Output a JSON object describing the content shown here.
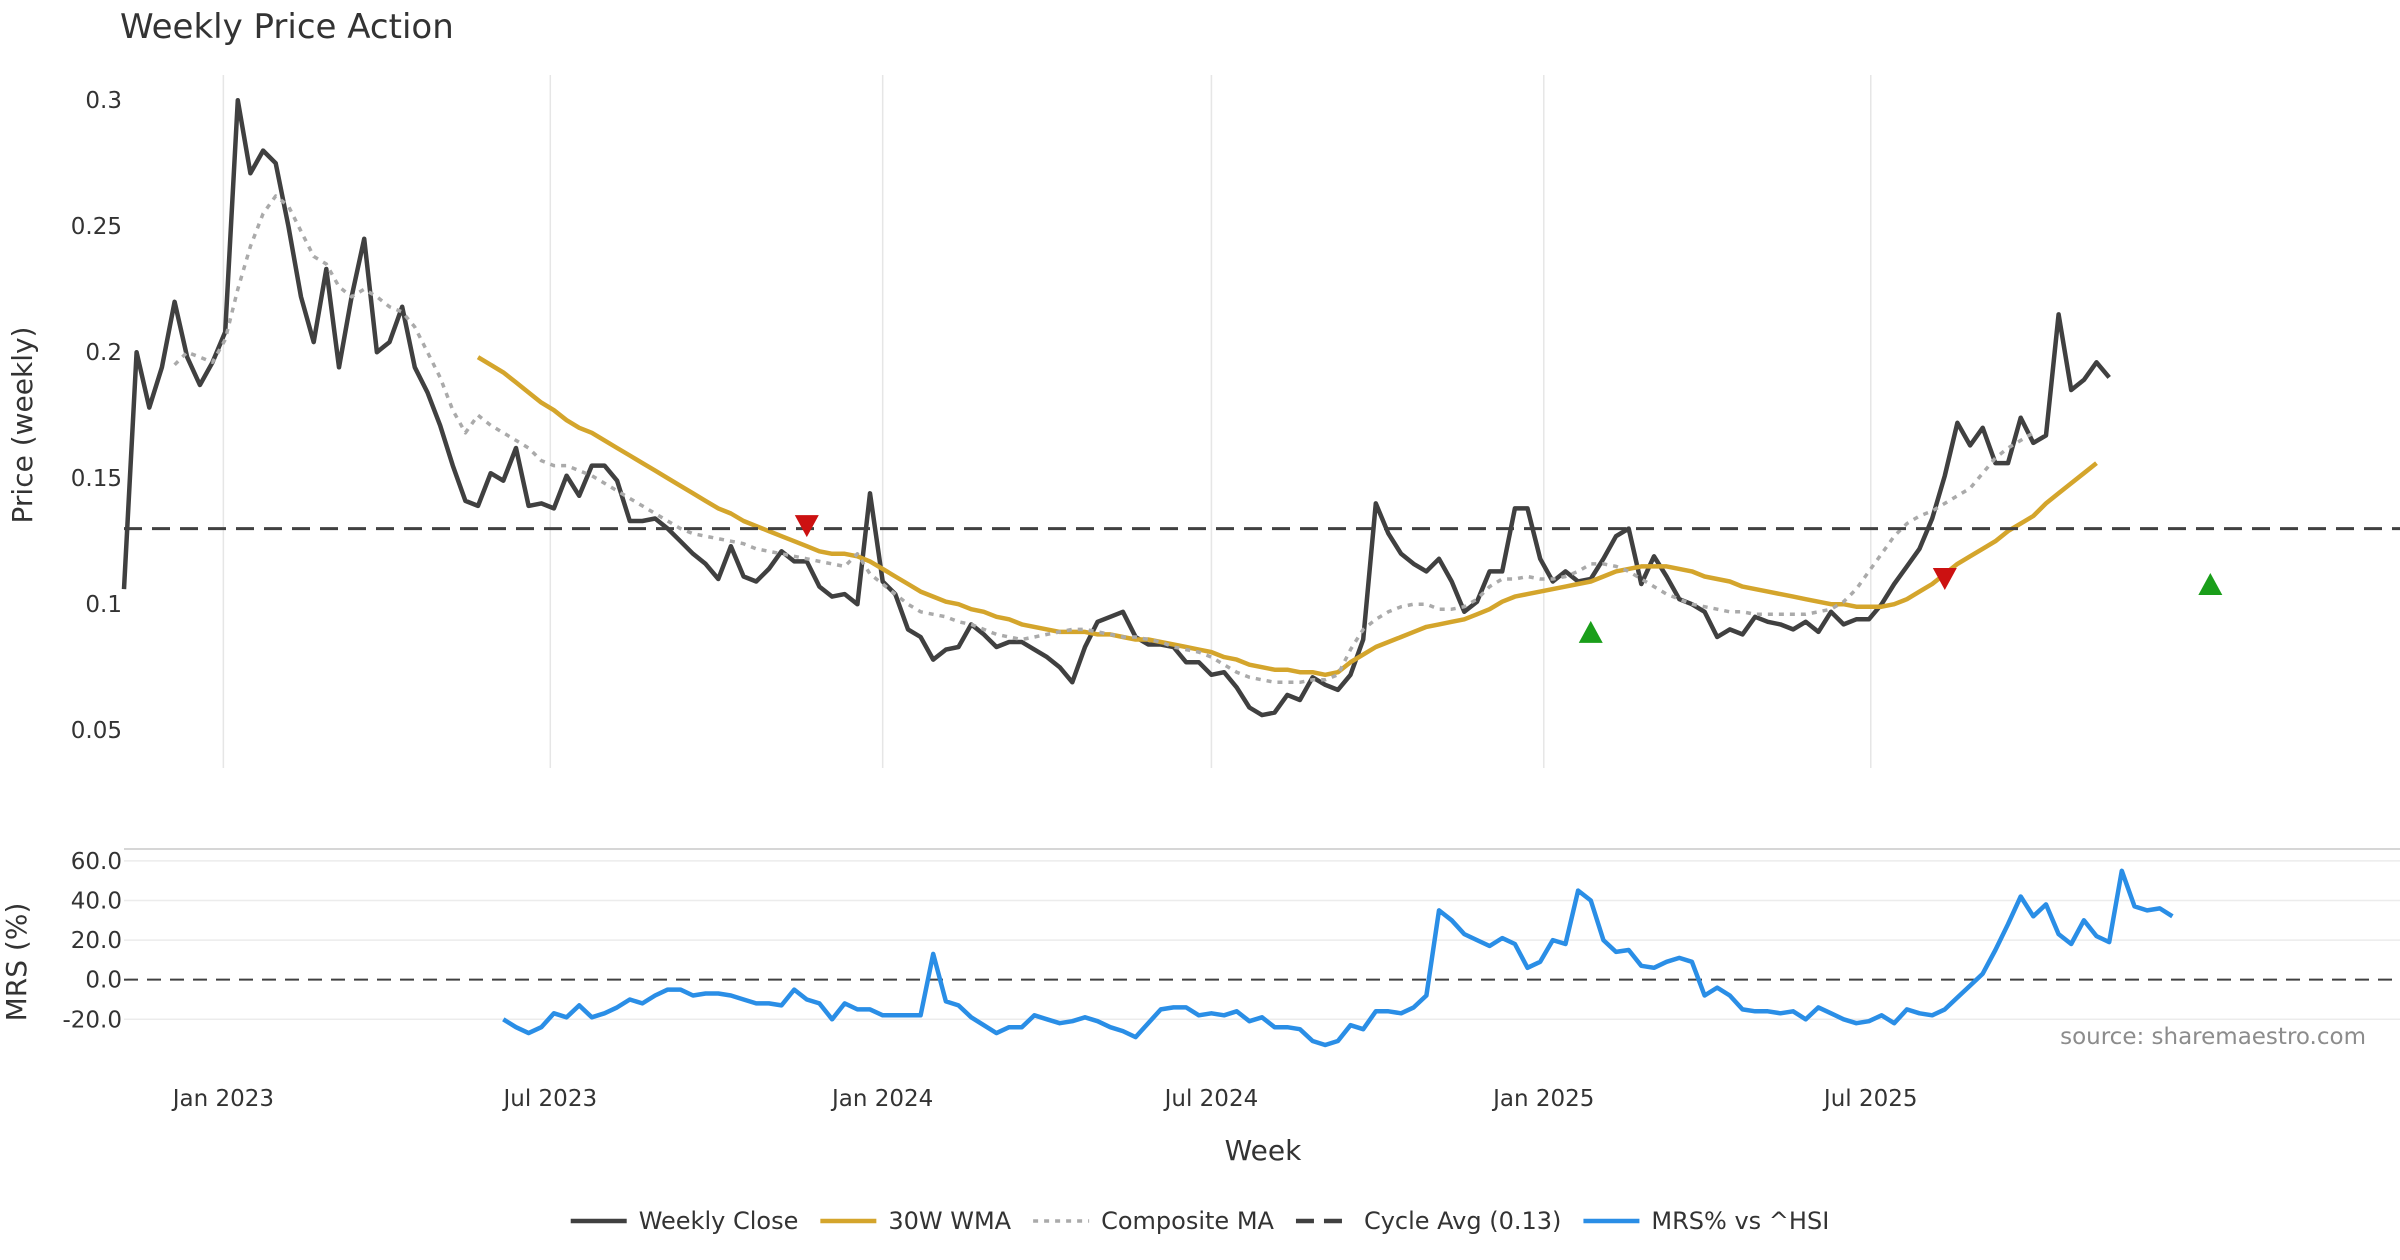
{
  "chart_data": {
    "type": "line",
    "title": "Weekly Price Action",
    "xlabel": "Week",
    "x_start": "2022-11-07",
    "x_ticks": [
      {
        "date": "2023-01-01",
        "label": "Jan 2023"
      },
      {
        "date": "2023-07-01",
        "label": "Jul 2023"
      },
      {
        "date": "2024-01-01",
        "label": "Jan 2024"
      },
      {
        "date": "2024-07-01",
        "label": "Jul 2024"
      },
      {
        "date": "2025-01-01",
        "label": "Jan 2025"
      },
      {
        "date": "2025-07-01",
        "label": "Jul 2025"
      }
    ],
    "price_panel": {
      "ylabel": "Price (weekly)",
      "ylim": [
        0.035,
        0.31
      ],
      "yticks": [
        0.3,
        0.25,
        0.2,
        0.15,
        0.1,
        0.05
      ],
      "ytick_labels": [
        "0.3",
        "0.25",
        "0.2",
        "0.15",
        "0.1",
        "0.05"
      ],
      "grid": "x",
      "series": [
        {
          "name": "Weekly Close",
          "color": "#404040",
          "style": "solid",
          "start_week": 0,
          "values": [
            0.106,
            0.2,
            0.178,
            0.194,
            0.22,
            0.198,
            0.187,
            0.196,
            0.208,
            0.3,
            0.271,
            0.28,
            0.275,
            0.25,
            0.222,
            0.204,
            0.233,
            0.194,
            0.222,
            0.245,
            0.2,
            0.204,
            0.218,
            0.194,
            0.184,
            0.171,
            0.155,
            0.141,
            0.139,
            0.152,
            0.149,
            0.162,
            0.139,
            0.14,
            0.138,
            0.151,
            0.143,
            0.155,
            0.155,
            0.149,
            0.133,
            0.133,
            0.134,
            0.13,
            0.125,
            0.12,
            0.116,
            0.11,
            0.123,
            0.111,
            0.109,
            0.114,
            0.121,
            0.117,
            0.117,
            0.107,
            0.103,
            0.104,
            0.1,
            0.144,
            0.109,
            0.104,
            0.09,
            0.087,
            0.078,
            0.082,
            0.083,
            0.092,
            0.088,
            0.083,
            0.085,
            0.085,
            0.082,
            0.079,
            0.075,
            0.069,
            0.083,
            0.093,
            0.095,
            0.097,
            0.087,
            0.084,
            0.084,
            0.083,
            0.077,
            0.077,
            0.072,
            0.073,
            0.067,
            0.059,
            0.056,
            0.057,
            0.064,
            0.062,
            0.071,
            0.068,
            0.066,
            0.072,
            0.086,
            0.14,
            0.128,
            0.12,
            0.116,
            0.113,
            0.118,
            0.109,
            0.097,
            0.101,
            0.113,
            0.113,
            0.138,
            0.138,
            0.118,
            0.109,
            0.113,
            0.109,
            0.11,
            0.118,
            0.127,
            0.13,
            0.108,
            0.119,
            0.111,
            0.102,
            0.1,
            0.097,
            0.087,
            0.09,
            0.088,
            0.095,
            0.093,
            0.092,
            0.09,
            0.093,
            0.089,
            0.097,
            0.092,
            0.094,
            0.094,
            0.1,
            0.108,
            0.115,
            0.122,
            0.134,
            0.151,
            0.172,
            0.163,
            0.17,
            0.156,
            0.156,
            0.174,
            0.164,
            0.167,
            0.215,
            0.185,
            0.189,
            0.196,
            0.19
          ]
        },
        {
          "name": "30W WMA",
          "color": "#d4a52c",
          "style": "solid",
          "start_week": 28,
          "values": [
            0.198,
            0.195,
            0.192,
            0.188,
            0.184,
            0.18,
            0.177,
            0.173,
            0.17,
            0.168,
            0.165,
            0.162,
            0.159,
            0.156,
            0.153,
            0.15,
            0.147,
            0.144,
            0.141,
            0.138,
            0.136,
            0.133,
            0.131,
            0.129,
            0.127,
            0.125,
            0.123,
            0.121,
            0.12,
            0.12,
            0.119,
            0.117,
            0.114,
            0.111,
            0.108,
            0.105,
            0.103,
            0.101,
            0.1,
            0.098,
            0.097,
            0.095,
            0.094,
            0.092,
            0.091,
            0.09,
            0.089,
            0.089,
            0.089,
            0.088,
            0.088,
            0.087,
            0.086,
            0.086,
            0.085,
            0.084,
            0.083,
            0.082,
            0.081,
            0.079,
            0.078,
            0.076,
            0.075,
            0.074,
            0.074,
            0.073,
            0.073,
            0.072,
            0.073,
            0.077,
            0.08,
            0.083,
            0.085,
            0.087,
            0.089,
            0.091,
            0.092,
            0.093,
            0.094,
            0.096,
            0.098,
            0.101,
            0.103,
            0.104,
            0.105,
            0.106,
            0.107,
            0.108,
            0.109,
            0.111,
            0.113,
            0.114,
            0.115,
            0.115,
            0.115,
            0.114,
            0.113,
            0.111,
            0.11,
            0.109,
            0.107,
            0.106,
            0.105,
            0.104,
            0.103,
            0.102,
            0.101,
            0.1,
            0.1,
            0.099,
            0.099,
            0.099,
            0.1,
            0.102,
            0.105,
            0.108,
            0.112,
            0.116,
            0.119,
            0.122,
            0.125,
            0.129,
            0.132,
            0.135,
            0.14,
            0.144,
            0.148,
            0.152,
            0.156
          ]
        },
        {
          "name": "Composite MA",
          "color": "#aaaaaa",
          "style": "dotted",
          "start_week": 4,
          "values": [
            0.195,
            0.2,
            0.198,
            0.196,
            0.205,
            0.225,
            0.242,
            0.255,
            0.262,
            0.258,
            0.248,
            0.238,
            0.235,
            0.226,
            0.222,
            0.225,
            0.222,
            0.218,
            0.216,
            0.21,
            0.2,
            0.19,
            0.177,
            0.168,
            0.175,
            0.171,
            0.168,
            0.165,
            0.162,
            0.157,
            0.155,
            0.155,
            0.153,
            0.151,
            0.148,
            0.145,
            0.142,
            0.139,
            0.136,
            0.133,
            0.13,
            0.128,
            0.127,
            0.126,
            0.125,
            0.124,
            0.122,
            0.121,
            0.12,
            0.119,
            0.118,
            0.117,
            0.116,
            0.115,
            0.12,
            0.112,
            0.108,
            0.104,
            0.1,
            0.097,
            0.096,
            0.095,
            0.093,
            0.092,
            0.09,
            0.088,
            0.087,
            0.086,
            0.087,
            0.088,
            0.089,
            0.09,
            0.09,
            0.089,
            0.088,
            0.087,
            0.087,
            0.086,
            0.085,
            0.083,
            0.082,
            0.081,
            0.079,
            0.076,
            0.073,
            0.071,
            0.07,
            0.069,
            0.069,
            0.069,
            0.07,
            0.07,
            0.072,
            0.082,
            0.09,
            0.094,
            0.097,
            0.099,
            0.1,
            0.1,
            0.098,
            0.098,
            0.099,
            0.102,
            0.107,
            0.11,
            0.11,
            0.111,
            0.11,
            0.11,
            0.111,
            0.113,
            0.116,
            0.116,
            0.115,
            0.113,
            0.11,
            0.107,
            0.104,
            0.102,
            0.1,
            0.099,
            0.098,
            0.097,
            0.097,
            0.096,
            0.096,
            0.096,
            0.096,
            0.096,
            0.097,
            0.098,
            0.101,
            0.106,
            0.113,
            0.12,
            0.127,
            0.132,
            0.135,
            0.137,
            0.14,
            0.143,
            0.146,
            0.152,
            0.158,
            0.162,
            0.165,
            0.168
          ]
        },
        {
          "name": "Cycle Avg (0.13)",
          "color": "#404040",
          "style": "dashed",
          "y": 0.13
        }
      ],
      "markers": [
        {
          "type": "sell",
          "week": 54,
          "y": 0.131,
          "color": "#cc1111"
        },
        {
          "type": "buy",
          "week": 116,
          "y": 0.089,
          "color": "#1a9e1a"
        },
        {
          "type": "sell",
          "week": 144,
          "y": 0.11,
          "color": "#cc1111"
        },
        {
          "type": "buy",
          "week": 165,
          "y": 0.108,
          "color": "#1a9e1a"
        }
      ]
    },
    "mrs_panel": {
      "ylabel": "MRS (%)",
      "ylim": [
        -33,
        66
      ],
      "yticks": [
        60,
        40,
        20,
        0,
        -20
      ],
      "ytick_labels": [
        "60.0",
        "40.0",
        "20.0",
        "0.0",
        "-20.0"
      ],
      "grid": "y",
      "zero_line": "dashed",
      "series": [
        {
          "name": "MRS% vs ^HSI",
          "color": "#2a8ee6",
          "style": "solid",
          "start_week": 30,
          "values": [
            -20,
            -24,
            -27,
            -24,
            -17,
            -19,
            -13,
            -19,
            -17,
            -14,
            -10,
            -12,
            -8,
            -5,
            -5,
            -8,
            -7,
            -7,
            -8,
            -10,
            -12,
            -12,
            -13,
            -5,
            -10,
            -12,
            -20,
            -12,
            -15,
            -15,
            -18,
            -18,
            -18,
            -18,
            13,
            -11,
            -13,
            -19,
            -23,
            -27,
            -24,
            -24,
            -18,
            -20,
            -22,
            -21,
            -19,
            -21,
            -24,
            -26,
            -29,
            -22,
            -15,
            -14,
            -14,
            -18,
            -17,
            -18,
            -16,
            -21,
            -19,
            -24,
            -24,
            -25,
            -31,
            -33,
            -31,
            -23,
            -25,
            -16,
            -16,
            -17,
            -14,
            -8,
            35,
            30,
            23,
            20,
            17,
            21,
            18,
            6,
            9,
            20,
            18,
            45,
            40,
            20,
            14,
            15,
            7,
            6,
            9,
            11,
            9,
            -8,
            -4,
            -8,
            -15,
            -16,
            -16,
            -17,
            -16,
            -20,
            -14,
            -17,
            -20,
            -22,
            -21,
            -18,
            -22,
            -15,
            -17,
            -18,
            -15,
            -9,
            -3,
            3,
            15,
            28,
            42,
            32,
            38,
            23,
            18,
            30,
            22,
            19,
            55,
            37,
            35,
            36,
            32
          ]
        }
      ]
    },
    "legend": {
      "placement": "bottom-center",
      "items": [
        {
          "label": "Weekly Close",
          "color": "#404040",
          "style": "solid"
        },
        {
          "label": "30W WMA",
          "color": "#d4a52c",
          "style": "solid"
        },
        {
          "label": "Composite MA",
          "color": "#aaaaaa",
          "style": "dotted"
        },
        {
          "label": "Cycle Avg (0.13)",
          "color": "#404040",
          "style": "dashed"
        },
        {
          "label": "MRS% vs ^HSI",
          "color": "#2a8ee6",
          "style": "solid"
        }
      ]
    },
    "annotations": [
      {
        "text": "source: sharemaestro.com"
      }
    ]
  }
}
